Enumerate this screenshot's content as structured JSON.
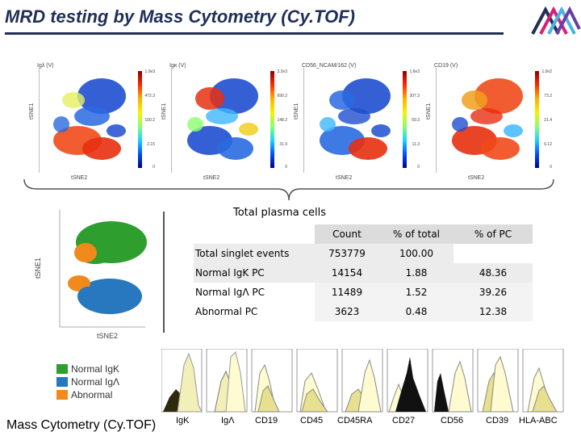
{
  "header": {
    "title": "MRD testing by Mass Cytometry (Cy.TOF)"
  },
  "panels": [
    {
      "title": "Igλ (V)",
      "xlabel": "tSNE2",
      "ylabel": "tSNE1",
      "scale": [
        "1.0e3",
        "472.3",
        "100.2",
        "2.15",
        "0"
      ]
    },
    {
      "title": "Igκ (V)",
      "xlabel": "tSNE2",
      "ylabel": "tSNE1",
      "scale": [
        "3.2e3",
        "690.2",
        "148.2",
        "31.9",
        "0"
      ]
    },
    {
      "title": "CD56_NCAM/162 (V)",
      "xlabel": "tSNE2",
      "ylabel": "tSNE1",
      "scale": [
        "1.6e3",
        "307.3",
        "59.3",
        "11.3",
        "0"
      ]
    },
    {
      "title": "CD19 (V)",
      "xlabel": "tSNE2",
      "ylabel": "tSNE1",
      "scale": [
        "1.0e2",
        "73.2",
        "21.4",
        "6.12",
        "0"
      ]
    }
  ],
  "tsne_small": {
    "xlabel": "tSNE2",
    "ylabel": "tSNE1"
  },
  "legend": [
    {
      "label": "Normal IgΚ",
      "color": "#2e9e2e"
    },
    {
      "label": "Normal IgΛ",
      "color": "#2878c0"
    },
    {
      "label": "Abnormal",
      "color": "#f08a1c"
    }
  ],
  "table": {
    "title": "Total plasma cells",
    "headers": [
      "",
      "Count",
      "% of total",
      "% of PC"
    ],
    "rows": [
      [
        "Total singlet events",
        "753779",
        "100.00",
        ""
      ],
      [
        "Normal IgΚ PC",
        "14154",
        "1.88",
        "48.36"
      ],
      [
        "Normal IgΛ PC",
        "11489",
        "1.52",
        "39.26"
      ],
      [
        "Abnormal PC",
        "3623",
        "0.48",
        "12.38"
      ]
    ]
  },
  "histograms": [
    "IgΚ",
    "IgΛ",
    "CD19",
    "CD45",
    "CD45RA",
    "CD27",
    "CD56",
    "CD39",
    "HLA-ABC"
  ],
  "caption": "Mass Cytometry (Cy.TOF)",
  "colors": {
    "title": "#1f2f56",
    "normal_kappa": "#2e9e2e",
    "normal_lambda": "#2878c0",
    "abnormal": "#f08a1c",
    "logo_blue": "#1f2f56",
    "logo_magenta": "#d2207a",
    "logo_cyan": "#4ab4e6"
  }
}
